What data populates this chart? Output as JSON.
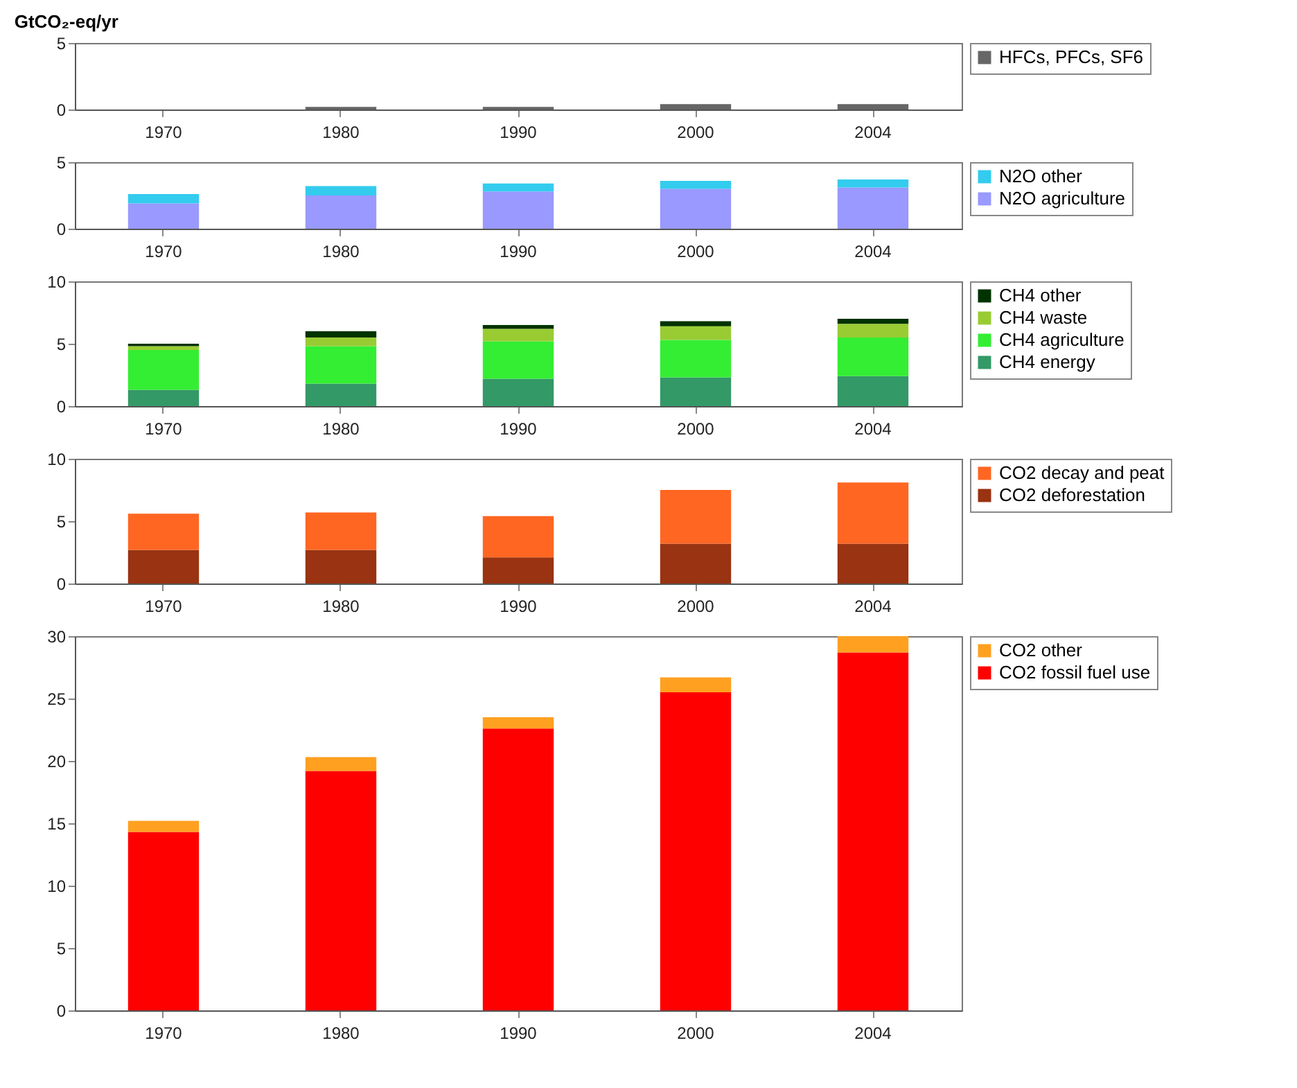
{
  "chart_data": [
    {
      "type": "bar",
      "title": "GtCO₂-eq/yr",
      "stacked": true,
      "categories": [
        "1970",
        "1980",
        "1990",
        "2000",
        "2004"
      ],
      "ylim": [
        0,
        5
      ],
      "yticks": [
        0,
        5
      ],
      "legend": "right",
      "series": [
        {
          "name": "HFCs, PFCs, SF6",
          "color": "#666666",
          "values": [
            null,
            0.2,
            0.2,
            0.4,
            0.4
          ]
        }
      ]
    },
    {
      "type": "bar",
      "stacked": true,
      "categories": [
        "1970",
        "1980",
        "1990",
        "2000",
        "2004"
      ],
      "ylim": [
        0,
        5
      ],
      "yticks": [
        0,
        5
      ],
      "legend": "right",
      "series": [
        {
          "name": "N2O agriculture",
          "color": "#9999ff",
          "values": [
            1.9,
            2.5,
            2.8,
            3.0,
            3.1
          ]
        },
        {
          "name": "N2O other",
          "color": "#33ccee",
          "values": [
            0.7,
            0.7,
            0.6,
            0.6,
            0.6
          ]
        }
      ]
    },
    {
      "type": "bar",
      "stacked": true,
      "categories": [
        "1970",
        "1980",
        "1990",
        "2000",
        "2004"
      ],
      "ylim": [
        0,
        10
      ],
      "yticks": [
        0,
        5,
        10
      ],
      "legend": "right",
      "series": [
        {
          "name": "CH4 energy",
          "color": "#339966",
          "values": [
            1.3,
            1.8,
            2.2,
            2.3,
            2.4
          ]
        },
        {
          "name": "CH4 agriculture",
          "color": "#33ee33",
          "values": [
            3.2,
            3.0,
            3.0,
            3.0,
            3.1
          ]
        },
        {
          "name": "CH4 waste",
          "color": "#99cc33",
          "values": [
            0.3,
            0.7,
            1.0,
            1.1,
            1.1
          ]
        },
        {
          "name": "CH4  other",
          "color": "#003300",
          "values": [
            0.2,
            0.5,
            0.3,
            0.4,
            0.4
          ]
        }
      ]
    },
    {
      "type": "bar",
      "stacked": true,
      "categories": [
        "1970",
        "1980",
        "1990",
        "2000",
        "2004"
      ],
      "ylim": [
        0,
        10
      ],
      "yticks": [
        0,
        5,
        10
      ],
      "legend": "right",
      "series": [
        {
          "name": "CO2 deforestation",
          "color": "#993311",
          "values": [
            2.7,
            2.7,
            2.1,
            3.2,
            3.2
          ]
        },
        {
          "name": "CO2 decay and peat",
          "color": "#ff6622",
          "values": [
            2.9,
            3.0,
            3.3,
            4.3,
            4.9
          ]
        }
      ]
    },
    {
      "type": "bar",
      "stacked": true,
      "categories": [
        "1970",
        "1980",
        "1990",
        "2000",
        "2004"
      ],
      "ylim": [
        0,
        30
      ],
      "yticks": [
        0,
        5,
        10,
        15,
        20,
        25,
        30
      ],
      "legend": "right",
      "series": [
        {
          "name": "CO2 fossil fuel use",
          "color": "#ff0000",
          "values": [
            14.3,
            19.2,
            22.6,
            25.5,
            28.7
          ]
        },
        {
          "name": "CO2 other",
          "color": "#ffa020",
          "values": [
            0.9,
            1.1,
            0.9,
            1.2,
            1.3
          ]
        }
      ]
    }
  ]
}
